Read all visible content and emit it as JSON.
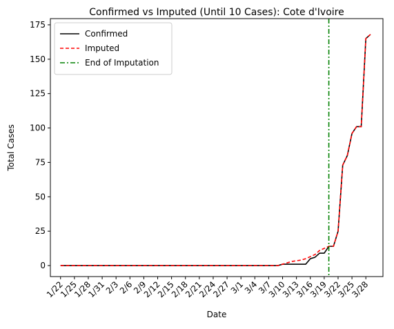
{
  "chart_data": {
    "type": "line",
    "title": "Confirmed vs Imputed (Until 10 Cases): Cote d'Ivoire",
    "xlabel": "Date",
    "ylabel": "Total Cases",
    "categories": [
      "1/22",
      null,
      null,
      "1/25",
      null,
      null,
      "1/28",
      null,
      null,
      "1/31",
      null,
      null,
      "2/3",
      null,
      null,
      "2/6",
      null,
      null,
      "2/9",
      null,
      null,
      "2/12",
      null,
      null,
      "2/15",
      null,
      null,
      "2/18",
      null,
      null,
      "2/21",
      null,
      null,
      "2/24",
      null,
      null,
      "2/27",
      null,
      null,
      "3/1",
      null,
      null,
      "3/4",
      null,
      null,
      "3/7",
      null,
      null,
      "3/10",
      null,
      null,
      "3/13",
      null,
      null,
      "3/16",
      null,
      null,
      "3/19",
      null,
      null,
      "3/22",
      null,
      null,
      "3/25",
      null,
      null,
      "3/28",
      null
    ],
    "series": [
      {
        "name": "Confirmed",
        "color": "#000000",
        "dash": "solid",
        "values": [
          0,
          0,
          0,
          0,
          0,
          0,
          0,
          0,
          0,
          0,
          0,
          0,
          0,
          0,
          0,
          0,
          0,
          0,
          0,
          0,
          0,
          0,
          0,
          0,
          0,
          0,
          0,
          0,
          0,
          0,
          0,
          0,
          0,
          0,
          0,
          0,
          0,
          0,
          0,
          0,
          0,
          0,
          0,
          0,
          0,
          0,
          0,
          0,
          1,
          1,
          1,
          1,
          1,
          1,
          5,
          6,
          9,
          9,
          14,
          14,
          25,
          73,
          80,
          96,
          101,
          101,
          165,
          168
        ]
      },
      {
        "name": "Imputed",
        "color": "#ff0000",
        "dash": "dashed",
        "values": [
          0,
          0,
          0,
          0,
          0,
          0,
          0,
          0,
          0,
          0,
          0,
          0,
          0,
          0,
          0,
          0,
          0,
          0,
          0,
          0,
          0,
          0,
          0,
          0,
          0,
          0,
          0,
          0,
          0,
          0,
          0,
          0,
          0,
          0,
          0,
          0,
          0,
          0,
          0,
          0,
          0,
          0,
          0,
          0,
          0,
          0,
          0,
          0,
          1,
          2,
          3,
          3.5,
          4,
          5,
          6.5,
          8,
          11,
          12.5,
          14,
          14,
          25,
          73,
          80,
          96,
          101,
          101,
          165,
          168
        ]
      }
    ],
    "vlines": [
      {
        "name": "End of Imputation",
        "color": "#008000",
        "x": 58
      }
    ],
    "xlim": [
      -2.2,
      69.7
    ],
    "ylim": [
      -8,
      179.5
    ],
    "yticks": [
      0,
      25,
      50,
      75,
      100,
      125,
      150,
      175
    ],
    "legend": "upper left"
  }
}
